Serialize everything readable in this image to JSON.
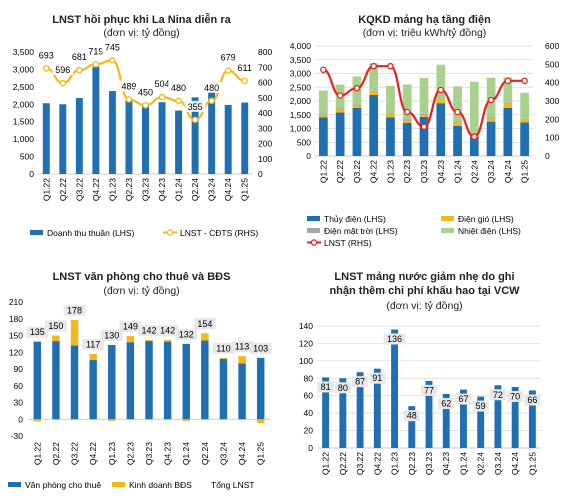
{
  "chart_data": [
    {
      "type": "bar",
      "title": "LNST hồi phục khi La Nina diễn ra",
      "subtitle": "(đơn vị: tỷ đồng)",
      "categories": [
        "Q1.22",
        "Q2.22",
        "Q3.22",
        "Q4.22",
        "Q1.23",
        "Q2.23",
        "Q3.23",
        "Q4.23",
        "Q1.24",
        "Q2.24",
        "Q3.24",
        "Q4.24",
        "Q1.25"
      ],
      "left_axis": {
        "ticks": [
          "0",
          "500",
          "1,000",
          "1,500",
          "2,000",
          "2,500",
          "3,000",
          "3,500"
        ],
        "ylim": [
          0,
          3500
        ]
      },
      "right_axis": {
        "ticks": [
          "0",
          "100",
          "200",
          "300",
          "400",
          "500",
          "600",
          "700",
          "800"
        ],
        "ylim": [
          0,
          800
        ]
      },
      "series": [
        {
          "name": "Doanh thu thuần (LHS)",
          "type": "bar",
          "axis": "left",
          "color": "#1f6fb2",
          "values": [
            2030,
            2000,
            2180,
            3080,
            2380,
            2100,
            2020,
            2060,
            1820,
            2200,
            2350,
            1980,
            2050
          ]
        },
        {
          "name": "LNST - CĐTS (RHS)",
          "type": "line",
          "axis": "right",
          "color": "#f5b81a",
          "values": [
            693,
            596,
            681,
            719,
            745,
            489,
            450,
            504,
            480,
            355,
            480,
            679,
            611
          ],
          "labels": [
            "693",
            "596",
            "681",
            "719",
            "745",
            "489",
            "450",
            "504",
            "480",
            "355",
            "480",
            "679",
            "611"
          ]
        }
      ],
      "grid": false,
      "legend_position": "bottom"
    },
    {
      "type": "bar",
      "title": "KQKD mảng hạ tầng điện",
      "subtitle": "(đơn vị: triệu kWh/tỷ đồng)",
      "categories": [
        "Q1.22",
        "Q2.22",
        "Q3.22",
        "Q4.22",
        "Q1.23",
        "Q2.23",
        "Q3.23",
        "Q4.23",
        "Q1.24",
        "Q2.24",
        "Q3.24",
        "Q4.24",
        "Q1.25"
      ],
      "stacked": true,
      "left_axis": {
        "ticks": [
          "0",
          "500",
          "1,000",
          "1,500",
          "2,000",
          "2,500",
          "3,000",
          "3,500",
          "4,000"
        ],
        "ylim": [
          0,
          4000
        ]
      },
      "right_axis": {
        "ticks": [
          "0",
          "100",
          "200",
          "300",
          "400",
          "500",
          "600"
        ],
        "ylim": [
          0,
          600
        ]
      },
      "series": [
        {
          "name": "Thủy điện (LHS)",
          "type": "bar",
          "axis": "left",
          "color": "#1f6fb2",
          "values": [
            1400,
            1580,
            1750,
            2220,
            1400,
            1200,
            1420,
            1920,
            1100,
            700,
            1250,
            1750,
            1220
          ]
        },
        {
          "name": "Điện gió (LHS)",
          "type": "bar",
          "axis": "left",
          "color": "#f5b81a",
          "values": [
            80,
            100,
            90,
            150,
            110,
            80,
            70,
            130,
            120,
            100,
            110,
            140,
            100
          ]
        },
        {
          "name": "Điện mặt trời (LHS)",
          "type": "bar",
          "axis": "left",
          "color": "#a6a6a6",
          "values": [
            30,
            50,
            40,
            20,
            40,
            50,
            40,
            20,
            40,
            50,
            40,
            20,
            30
          ]
        },
        {
          "name": "Nhiệt điện (LHS)",
          "type": "bar",
          "axis": "left",
          "color": "#a9d18e",
          "values": [
            870,
            870,
            1010,
            980,
            1000,
            1270,
            1310,
            1250,
            1270,
            1850,
            1450,
            950,
            950
          ]
        },
        {
          "name": "LNST (RHS)",
          "type": "line",
          "axis": "right",
          "color": "#e8201e",
          "values": [
            470,
            330,
            370,
            490,
            490,
            240,
            160,
            360,
            240,
            105,
            305,
            410,
            410
          ]
        }
      ],
      "grid": true,
      "legend_position": "bottom"
    },
    {
      "type": "bar",
      "title": "LNST văn phòng cho thuê và BĐS",
      "subtitle": "(đơn vị: tỷ đồng)",
      "categories": [
        "Q1.22",
        "Q2.22",
        "Q3.22",
        "Q4.22",
        "Q1.23",
        "Q2.23",
        "Q3.23",
        "Q4.23",
        "Q1.24",
        "Q2.24",
        "Q3.24",
        "Q4.24",
        "Q1.25"
      ],
      "stacked": true,
      "left_axis": {
        "ticks": [
          "-30",
          "0",
          "30",
          "60",
          "90",
          "120",
          "150",
          "180",
          "210"
        ],
        "ylim": [
          -30,
          210
        ]
      },
      "series": [
        {
          "name": "Văn phòng cho thuê",
          "type": "bar",
          "color": "#1f6fb2",
          "values": [
            139,
            140,
            132,
            106,
            133,
            138,
            140,
            139,
            135,
            141,
            108,
            100,
            110
          ]
        },
        {
          "name": "Kinh doanh BĐS",
          "type": "bar",
          "color": "#f5b81a",
          "values": [
            -4,
            10,
            46,
            11,
            -3,
            11,
            2,
            3,
            -3,
            13,
            2,
            13,
            -7
          ]
        },
        {
          "name": "Tổng LNST",
          "type": "label",
          "values": [
            135,
            150,
            178,
            117,
            130,
            149,
            142,
            142,
            132,
            154,
            110,
            113,
            103
          ]
        }
      ],
      "grid": false,
      "legend_position": "bottom"
    },
    {
      "type": "bar",
      "title": "LNST mảng nước giảm nhẹ do ghi nhận thêm chi phí khấu hao tại VCW",
      "subtitle": "(đơn vị: tỷ đồng)",
      "categories": [
        "Q1.22",
        "Q2.22",
        "Q3.22",
        "Q4.22",
        "Q1.23",
        "Q2.23",
        "Q3.23",
        "Q4.23",
        "Q1.24",
        "Q2.24",
        "Q3.24",
        "Q4.24",
        "Q1.25"
      ],
      "left_axis": {
        "ticks": [
          "0",
          "20",
          "40",
          "60",
          "80",
          "100",
          "120",
          "140"
        ],
        "ylim": [
          0,
          140
        ]
      },
      "series": [
        {
          "name": "",
          "type": "bar",
          "color": "#1f6fb2",
          "values": [
            81,
            80,
            87,
            91,
            136,
            48,
            77,
            62,
            67,
            59,
            72,
            70,
            66
          ]
        }
      ],
      "grid": true,
      "legend_position": "none"
    }
  ]
}
